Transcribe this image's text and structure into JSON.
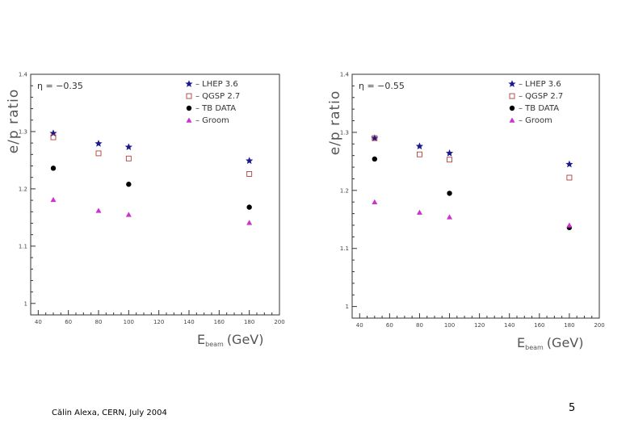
{
  "footer": {
    "credit": "Călin Alexa, CERN, July 2004",
    "page_number": "5"
  },
  "legend": [
    {
      "label": "– LHEP 3.6",
      "marker": "star",
      "color": "#1a1a8c"
    },
    {
      "label": "– QGSP 2.7",
      "marker": "open-square",
      "color": "#b04040"
    },
    {
      "label": "– TB DATA",
      "marker": "filled-circle",
      "color": "#000000"
    },
    {
      "label": "– Groom",
      "marker": "triangle",
      "color": "#cc33cc"
    }
  ],
  "chart_data": [
    {
      "type": "scatter",
      "eta_label": "η = −0.35",
      "ylabel": "e/p ratio",
      "xlabel_main": "E",
      "xlabel_sub": "beam",
      "xlabel_unit": "(GeV)",
      "xlim": [
        35,
        200
      ],
      "ylim": [
        0.98,
        1.4
      ],
      "x_ticks": [
        40,
        60,
        80,
        100,
        120,
        140,
        160,
        180,
        200
      ],
      "y_ticks": [
        1,
        1.1,
        1.2,
        1.3,
        1.4
      ],
      "series": [
        {
          "name": "LHEP 3.6",
          "x": [
            50,
            80,
            100,
            180
          ],
          "y": [
            1.297,
            1.279,
            1.273,
            1.249
          ]
        },
        {
          "name": "QGSP 2.7",
          "x": [
            50,
            80,
            100,
            180
          ],
          "y": [
            1.29,
            1.262,
            1.253,
            1.226
          ]
        },
        {
          "name": "TB DATA",
          "x": [
            50,
            100,
            180
          ],
          "y": [
            1.236,
            1.208,
            1.168
          ]
        },
        {
          "name": "Groom",
          "x": [
            50,
            80,
            100,
            180
          ],
          "y": [
            1.181,
            1.162,
            1.155,
            1.141
          ]
        }
      ]
    },
    {
      "type": "scatter",
      "eta_label": "η = −0.55",
      "ylabel": "e/p ratio",
      "xlabel_main": "E",
      "xlabel_sub": "beam",
      "xlabel_unit": "(GeV)",
      "xlim": [
        35,
        200
      ],
      "ylim": [
        0.98,
        1.4
      ],
      "x_ticks": [
        40,
        60,
        80,
        100,
        120,
        140,
        160,
        180,
        200
      ],
      "y_ticks": [
        1,
        1.1,
        1.2,
        1.3,
        1.4
      ],
      "series": [
        {
          "name": "LHEP 3.6",
          "x": [
            50,
            80,
            100,
            180
          ],
          "y": [
            1.29,
            1.276,
            1.264,
            1.245
          ]
        },
        {
          "name": "QGSP 2.7",
          "x": [
            50,
            80,
            100,
            180
          ],
          "y": [
            1.29,
            1.262,
            1.253,
            1.222
          ]
        },
        {
          "name": "TB DATA",
          "x": [
            50,
            100,
            180
          ],
          "y": [
            1.254,
            1.195,
            1.136
          ]
        },
        {
          "name": "Groom",
          "x": [
            50,
            80,
            100,
            180
          ],
          "y": [
            1.18,
            1.162,
            1.154,
            1.14
          ]
        }
      ]
    }
  ]
}
